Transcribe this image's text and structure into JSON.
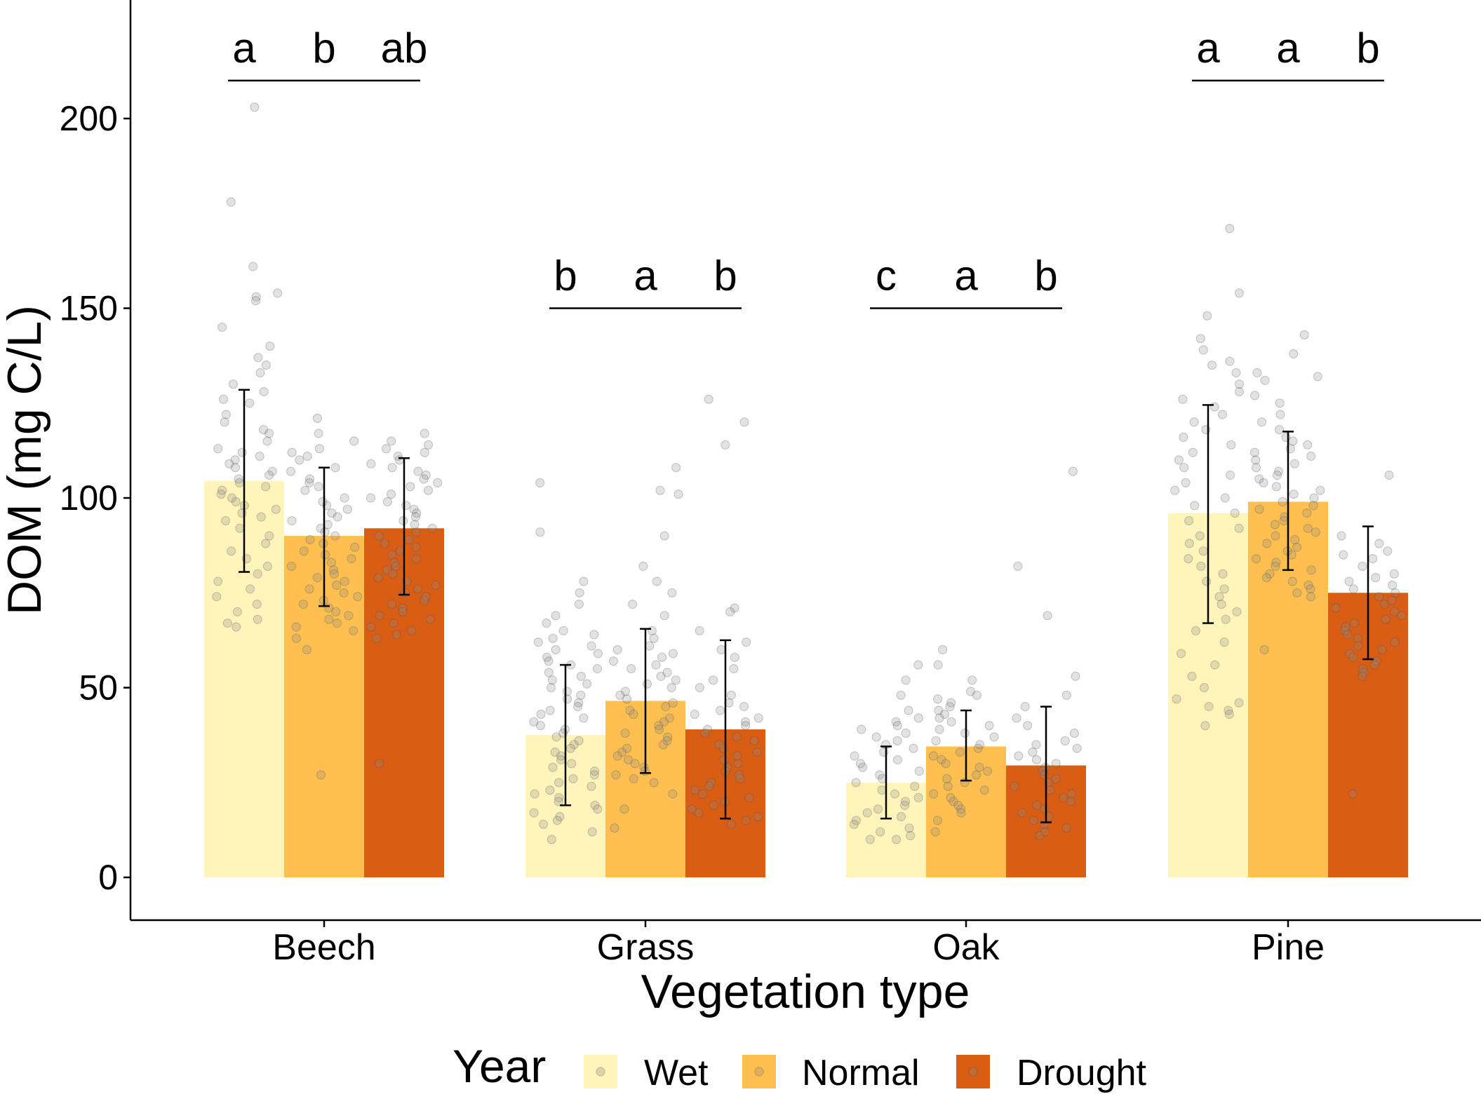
{
  "chart_data": {
    "type": "bar",
    "title": "",
    "xlabel": "Vegetation type",
    "ylabel": "DOM (mg C/L)",
    "ylim": [
      -10,
      230
    ],
    "yticks": [
      0,
      50,
      100,
      150,
      200
    ],
    "grid": false,
    "categories": [
      "Beech",
      "Grass",
      "Oak",
      "Pine"
    ],
    "legend": {
      "title": "Year",
      "position": "bottom",
      "entries": [
        "Wet",
        "Normal",
        "Drought"
      ]
    },
    "series": [
      {
        "name": "Wet",
        "color": "#fff5bb",
        "values": [
          104.5,
          37.5,
          25,
          96
        ],
        "err_low": [
          80.5,
          19,
          15.5,
          67
        ],
        "err_high": [
          128.5,
          56,
          34.5,
          124.5
        ]
      },
      {
        "name": "Normal",
        "color": "#fdbf4f",
        "values": [
          90,
          46.5,
          34.5,
          99
        ],
        "err_low": [
          71.5,
          27.5,
          25.5,
          81
        ],
        "err_high": [
          108,
          65.5,
          44,
          117.5
        ]
      },
      {
        "name": "Drought",
        "color": "#d95d13",
        "values": [
          92,
          39,
          29.5,
          75
        ],
        "err_low": [
          74.5,
          15.5,
          14.5,
          57.5
        ],
        "err_high": [
          110.5,
          62.5,
          45,
          92.5
        ]
      }
    ],
    "significance": [
      {
        "category": "Beech",
        "letters": [
          "a",
          "b",
          "ab"
        ],
        "bracket_y": 210
      },
      {
        "category": "Grass",
        "letters": [
          "b",
          "a",
          "b"
        ],
        "bracket_y": 150
      },
      {
        "category": "Oak",
        "letters": [
          "c",
          "a",
          "b"
        ],
        "bracket_y": 150
      },
      {
        "category": "Pine",
        "letters": [
          "a",
          "a",
          "b"
        ],
        "bracket_y": 210
      }
    ],
    "points": {
      "description_color": "#808080",
      "opacity": 0.25,
      "groups": [
        {
          "category": "Beech",
          "series": "Wet",
          "values": [
            203,
            178,
            161,
            154,
            153,
            152,
            145,
            140,
            137,
            135,
            133,
            130,
            128,
            126,
            125,
            122,
            120,
            118,
            117,
            115,
            113,
            112,
            111,
            110,
            109,
            108,
            107,
            106,
            105,
            104,
            103,
            102,
            101,
            100,
            99,
            98,
            97,
            96,
            95,
            94,
            92,
            90,
            88,
            86,
            84,
            82,
            80,
            78,
            76,
            74,
            72,
            70,
            68,
            67,
            66
          ]
        },
        {
          "category": "Beech",
          "series": "Normal",
          "values": [
            121,
            117,
            115,
            113,
            112,
            111,
            110,
            108,
            107,
            105,
            104,
            103,
            102,
            100,
            99,
            98,
            97,
            96,
            95,
            94,
            93,
            92,
            91,
            90,
            89,
            88,
            87,
            86,
            85,
            84,
            83,
            82,
            81,
            80,
            79,
            78,
            77,
            76,
            75,
            74,
            73,
            72,
            71,
            70,
            69,
            68,
            67,
            66,
            65,
            63,
            60,
            27
          ]
        },
        {
          "category": "Beech",
          "series": "Drought",
          "values": [
            117,
            115,
            114,
            113,
            112,
            111,
            110,
            109,
            108,
            107,
            106,
            105,
            104,
            103,
            102,
            101,
            100,
            99,
            98,
            97,
            96,
            95,
            94,
            93,
            92,
            91,
            90,
            89,
            88,
            87,
            86,
            85,
            84,
            83,
            82,
            81,
            80,
            79,
            78,
            77,
            76,
            75,
            74,
            73,
            72,
            71,
            70,
            69,
            68,
            67,
            66,
            65,
            64,
            63,
            30
          ]
        },
        {
          "category": "Grass",
          "series": "Wet",
          "values": [
            104,
            91,
            78,
            75,
            72,
            69,
            67,
            65,
            64,
            63,
            62,
            61,
            60,
            59,
            58,
            57,
            56,
            55,
            54,
            53,
            52,
            51,
            50,
            49,
            48,
            47,
            46,
            45,
            44,
            43,
            42,
            41,
            40,
            39,
            38,
            37,
            36,
            35,
            34,
            33,
            32,
            31,
            30,
            29,
            28,
            27,
            26,
            25,
            24,
            23,
            22,
            21,
            20,
            19,
            18,
            17,
            16,
            15,
            14,
            12,
            10
          ]
        },
        {
          "category": "Grass",
          "series": "Normal",
          "values": [
            108,
            102,
            101,
            90,
            82,
            78,
            75,
            72,
            69,
            65,
            63,
            61,
            60,
            59,
            58,
            57,
            56,
            55,
            54,
            53,
            52,
            51,
            50,
            49,
            48,
            47,
            46,
            45,
            44,
            43,
            42,
            41,
            40,
            39,
            38,
            37,
            36,
            35,
            34,
            33,
            32,
            31,
            30,
            29,
            28,
            27,
            26,
            25,
            22,
            18,
            13
          ]
        },
        {
          "category": "Grass",
          "series": "Drought",
          "values": [
            126,
            120,
            114,
            71,
            70,
            65,
            62,
            60,
            58,
            55,
            52,
            50,
            48,
            46,
            45,
            44,
            43,
            42,
            41,
            40,
            39,
            38,
            37,
            36,
            35,
            34,
            33,
            32,
            31,
            30,
            29,
            28,
            27,
            26,
            25,
            24,
            23,
            22,
            21,
            20,
            19,
            18,
            17,
            16,
            15,
            14
          ]
        },
        {
          "category": "Oak",
          "series": "Wet",
          "values": [
            56,
            52,
            48,
            44,
            42,
            41,
            40,
            39,
            38,
            37,
            36,
            35,
            34,
            33,
            32,
            31,
            30,
            29,
            28,
            27,
            26,
            25,
            24,
            23,
            22,
            21,
            20,
            19,
            18,
            17,
            16,
            15,
            14,
            13,
            12,
            11,
            10,
            10
          ]
        },
        {
          "category": "Oak",
          "series": "Normal",
          "values": [
            60,
            56,
            52,
            49,
            48,
            47,
            46,
            45,
            44,
            43,
            42,
            41,
            40,
            39,
            38,
            37,
            36,
            35,
            34,
            33,
            32,
            31,
            30,
            29,
            28,
            27,
            26,
            25,
            24,
            23,
            22,
            21,
            20,
            19,
            18,
            17,
            15,
            12
          ]
        },
        {
          "category": "Oak",
          "series": "Drought",
          "values": [
            107,
            82,
            69,
            53,
            48,
            45,
            42,
            40,
            38,
            36,
            35,
            34,
            33,
            32,
            31,
            30,
            29,
            28,
            27,
            26,
            25,
            24,
            23,
            22,
            21,
            20,
            19,
            18,
            17,
            16,
            15,
            14,
            13,
            12,
            11
          ]
        },
        {
          "category": "Pine",
          "series": "Wet",
          "values": [
            171,
            154,
            148,
            142,
            139,
            136,
            135,
            133,
            130,
            128,
            126,
            124,
            122,
            120,
            118,
            116,
            114,
            112,
            110,
            108,
            106,
            104,
            102,
            100,
            98,
            96,
            94,
            92,
            90,
            88,
            86,
            84,
            82,
            80,
            78,
            76,
            74,
            72,
            70,
            68,
            65,
            62,
            59,
            56,
            53,
            50,
            47,
            46,
            45,
            44,
            43,
            40
          ]
        },
        {
          "category": "Pine",
          "series": "Normal",
          "values": [
            143,
            138,
            133,
            132,
            131,
            127,
            125,
            122,
            120,
            118,
            116,
            115,
            114,
            113,
            112,
            111,
            110,
            109,
            108,
            107,
            106,
            105,
            104,
            103,
            102,
            101,
            100,
            99,
            98,
            97,
            96,
            95,
            94,
            93,
            92,
            91,
            90,
            89,
            88,
            87,
            86,
            85,
            84,
            83,
            82,
            81,
            80,
            79,
            78,
            77,
            76,
            75,
            74,
            60
          ]
        },
        {
          "category": "Pine",
          "series": "Drought",
          "values": [
            106,
            90,
            88,
            86,
            85,
            84,
            82,
            80,
            79,
            78,
            77,
            76,
            75,
            74,
            73,
            72,
            71,
            70,
            69,
            68,
            67,
            66,
            65,
            64,
            63,
            62,
            61,
            60,
            59,
            58,
            57,
            56,
            55,
            54,
            53,
            22
          ]
        }
      ]
    }
  }
}
